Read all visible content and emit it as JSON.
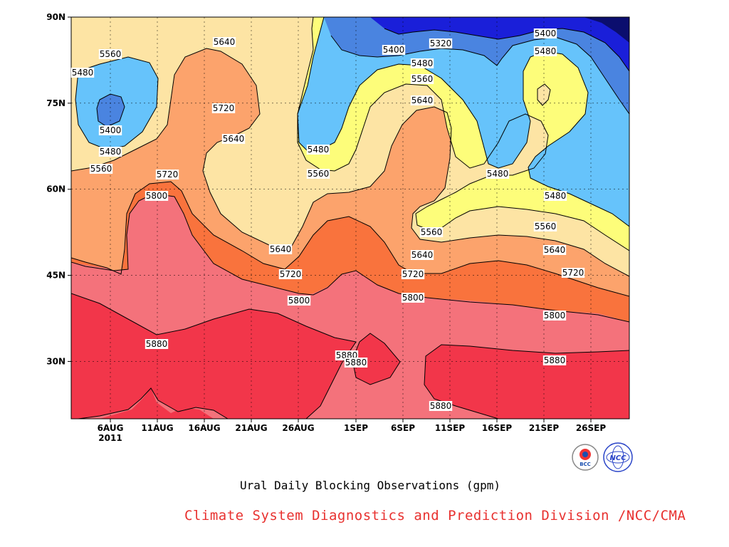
{
  "chart_data": {
    "type": "contour",
    "title": "Ural Daily Blocking Observations (gpm)",
    "credit": "Climate System Diagnostics and Prediction Division /NCC/CMA",
    "x_ticks": [
      "6AUG",
      "11AUG",
      "16AUG",
      "21AUG",
      "26AUG",
      "1SEP",
      "6SEP",
      "11SEP",
      "16SEP",
      "21SEP",
      "26SEP"
    ],
    "x_year_label": "2011",
    "y_ticks": [
      "30N",
      "45N",
      "60N",
      "75N",
      "90N"
    ],
    "y_range_deg": [
      20,
      90
    ],
    "contour_levels": [
      5320,
      5400,
      5480,
      5560,
      5640,
      5720,
      5800,
      5880
    ],
    "contour_colors": {
      "lt5320": "#0b0e6e",
      "5320": "#1a1fd9",
      "5400": "#4a84e0",
      "5480": "#66c3fb",
      "5560": "#fdfd7a",
      "5640": "#fde4a4",
      "5720": "#fca36c",
      "5800": "#f9733d",
      "5880": "#f4727b",
      "gt5880": "#f2364a"
    },
    "contour_labels": [
      {
        "text": "5560"
      },
      {
        "text": "5480"
      },
      {
        "text": "5400"
      },
      {
        "text": "5480"
      },
      {
        "text": "5560"
      },
      {
        "text": "5640"
      },
      {
        "text": "5720"
      },
      {
        "text": "5640"
      },
      {
        "text": "5720"
      },
      {
        "text": "5800"
      },
      {
        "text": "5480"
      },
      {
        "text": "5560"
      },
      {
        "text": "5640"
      },
      {
        "text": "5720"
      },
      {
        "text": "5800"
      },
      {
        "text": "5880"
      },
      {
        "text": "5400"
      },
      {
        "text": "5320"
      },
      {
        "text": "5480"
      },
      {
        "text": "5560"
      },
      {
        "text": "5640"
      },
      {
        "text": "5560"
      },
      {
        "text": "5640"
      },
      {
        "text": "5720"
      },
      {
        "text": "5800"
      },
      {
        "text": "5880"
      },
      {
        "text": "5880"
      },
      {
        "text": "5880"
      },
      {
        "text": "5400"
      },
      {
        "text": "5480"
      },
      {
        "text": "5480"
      },
      {
        "text": "5480"
      },
      {
        "text": "5560"
      },
      {
        "text": "5640"
      },
      {
        "text": "5720"
      },
      {
        "text": "5800"
      },
      {
        "text": "5880"
      }
    ],
    "logos": [
      {
        "name": "BCC",
        "text": "BCC"
      },
      {
        "name": "NCC",
        "text": "NCC"
      }
    ]
  }
}
